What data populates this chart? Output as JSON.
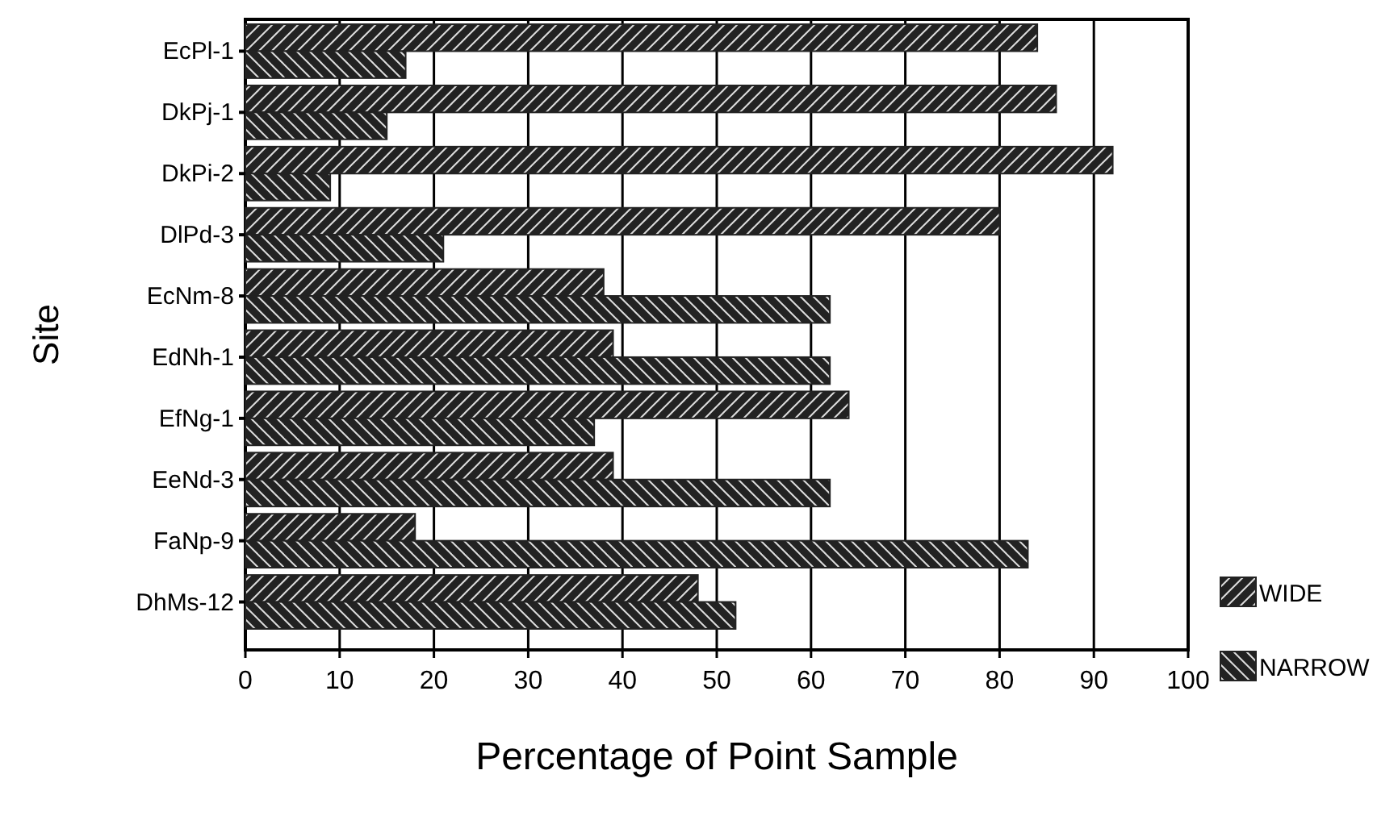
{
  "chart_data": {
    "type": "bar",
    "orientation": "horizontal",
    "xlabel": "Percentage of Point Sample",
    "ylabel": "Site",
    "categories": [
      "EcPl-1",
      "DkPj-1",
      "DkPi-2",
      "DlPd-3",
      "EcNm-8",
      "EdNh-1",
      "EfNg-1",
      "EeNd-3",
      "FaNp-9",
      "DhMs-12"
    ],
    "series": [
      {
        "name": "WIDE",
        "color": "#222222",
        "values": [
          84,
          86,
          92,
          80,
          38,
          39,
          64,
          39,
          18,
          48
        ]
      },
      {
        "name": "NARROW",
        "color": "#222222",
        "values": [
          17,
          15,
          9,
          21,
          62,
          62,
          37,
          62,
          83,
          52
        ]
      }
    ],
    "xlim": [
      0,
      100
    ],
    "xticks": [
      0,
      10,
      20,
      30,
      40,
      50,
      60,
      70,
      80,
      90,
      100
    ],
    "grid": "x",
    "legend": "bottom right"
  }
}
